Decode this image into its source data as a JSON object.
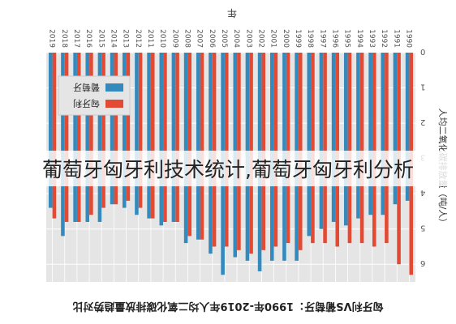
{
  "overlay_text": "葡萄牙匈牙利技术统计,葡萄牙匈牙利分析",
  "chart_data": {
    "type": "bar",
    "orientation": "rotated-180",
    "title": "匈牙利VS葡萄牙：1990年-2019年人均二氧化碳排放量趋势对比",
    "xlabel": "年",
    "ylabel": "人均二氧化碳排放量（吨/人）",
    "ylim": [
      0,
      6.5
    ],
    "yticks": [
      0,
      1,
      2,
      3,
      4,
      5,
      6
    ],
    "grid": true,
    "legend_position": "top-right",
    "categories": [
      "1990",
      "1991",
      "1992",
      "1993",
      "1994",
      "1995",
      "1996",
      "1997",
      "1998",
      "1999",
      "2000",
      "2001",
      "2002",
      "2003",
      "2004",
      "2005",
      "2006",
      "2007",
      "2008",
      "2009",
      "2010",
      "2011",
      "2012",
      "2013",
      "2014",
      "2015",
      "2016",
      "2017",
      "2018",
      "2019"
    ],
    "series": [
      {
        "name": "匈牙利",
        "color": "#e24a33",
        "values": [
          6.3,
          6.0,
          5.4,
          5.5,
          5.4,
          5.4,
          5.5,
          5.4,
          5.4,
          5.6,
          5.4,
          5.5,
          5.6,
          5.7,
          5.6,
          5.5,
          5.5,
          5.3,
          5.2,
          4.8,
          4.8,
          4.7,
          4.4,
          4.2,
          4.3,
          4.4,
          4.6,
          4.8,
          4.8,
          4.7
        ]
      },
      {
        "name": "葡萄牙",
        "color": "#348abd",
        "values": [
          4.2,
          4.3,
          4.6,
          4.6,
          4.7,
          4.9,
          4.8,
          5.0,
          5.2,
          5.9,
          5.9,
          5.9,
          6.2,
          5.9,
          5.8,
          6.3,
          5.7,
          5.3,
          5.4,
          4.8,
          4.9,
          4.7,
          4.6,
          4.4,
          4.3,
          4.8,
          4.8,
          4.8,
          5.2,
          4.4
        ]
      }
    ]
  }
}
